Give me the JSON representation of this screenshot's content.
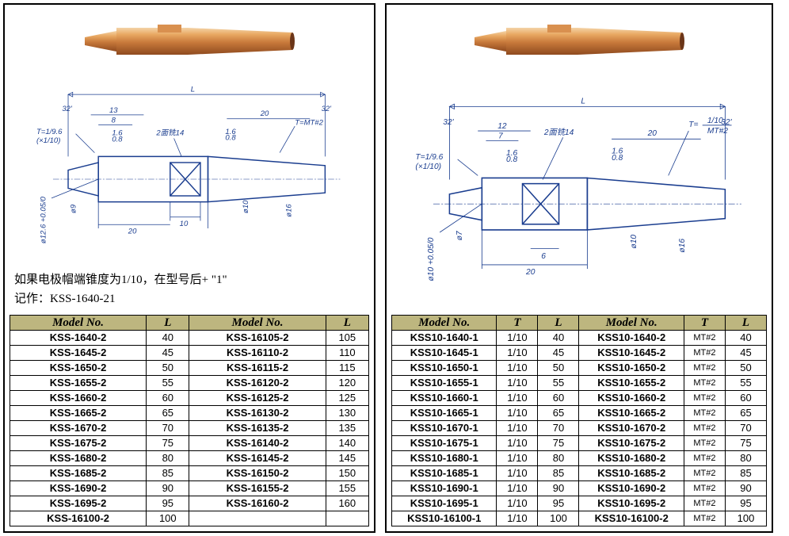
{
  "note": {
    "line1": "如果电极帽端锥度为1/10，在型号后+ \"1\"",
    "line2": "记作：KSS-1640-21"
  },
  "diagram_left": {
    "L": "L",
    "T_left": "T=1/9.6",
    "T_left2": "(×1/10)",
    "T_right": "T=MT#2",
    "d13": "13",
    "d8": "8",
    "d20a": "20",
    "d20b": "20",
    "d10": "10",
    "d16a": "1.6",
    "d08a": "0.8",
    "d16b": "1.6",
    "d08b": "0.8",
    "face": "2面铣14",
    "phi9": "ø9",
    "phi10": "ø10",
    "phi16": "ø16",
    "phi126": "ø12.6 +0.05/0",
    "ang1": "32'",
    "ang2": "32'"
  },
  "diagram_right": {
    "L": "L",
    "T_left": "T=1/9.6",
    "T_left2": "(×1/10)",
    "T_right_top": "1/10",
    "T_right_bot": "MT#2",
    "T_eq": "T=",
    "d12": "12",
    "d7": "7",
    "d20a": "20",
    "d20b": "20",
    "d6": "6",
    "d16a": "1.6",
    "d08a": "0.8",
    "d16b": "1.6",
    "d08b": "0.8",
    "face": "2面铣14",
    "phi7": "ø7",
    "phi10": "ø10",
    "phi16": "ø16",
    "phi10tol": "ø10 +0.05/0",
    "ang1": "32'",
    "ang2": "32'"
  },
  "table_left": {
    "headers": [
      "Model No.",
      "L",
      "Model No.",
      "L"
    ],
    "rows": [
      [
        "KSS-1640-2",
        "40",
        "KSS-16105-2",
        "105"
      ],
      [
        "KSS-1645-2",
        "45",
        "KSS-16110-2",
        "110"
      ],
      [
        "KSS-1650-2",
        "50",
        "KSS-16115-2",
        "115"
      ],
      [
        "KSS-1655-2",
        "55",
        "KSS-16120-2",
        "120"
      ],
      [
        "KSS-1660-2",
        "60",
        "KSS-16125-2",
        "125"
      ],
      [
        "KSS-1665-2",
        "65",
        "KSS-16130-2",
        "130"
      ],
      [
        "KSS-1670-2",
        "70",
        "KSS-16135-2",
        "135"
      ],
      [
        "KSS-1675-2",
        "75",
        "KSS-16140-2",
        "140"
      ],
      [
        "KSS-1680-2",
        "80",
        "KSS-16145-2",
        "145"
      ],
      [
        "KSS-1685-2",
        "85",
        "KSS-16150-2",
        "150"
      ],
      [
        "KSS-1690-2",
        "90",
        "KSS-16155-2",
        "155"
      ],
      [
        "KSS-1695-2",
        "95",
        "KSS-16160-2",
        "160"
      ],
      [
        "KSS-16100-2",
        "100",
        "",
        ""
      ]
    ]
  },
  "table_right": {
    "headers": [
      "Model No.",
      "T",
      "L",
      "Model No.",
      "T",
      "L"
    ],
    "rows": [
      [
        "KSS10-1640-1",
        "1/10",
        "40",
        "KSS10-1640-2",
        "MT#2",
        "40"
      ],
      [
        "KSS10-1645-1",
        "1/10",
        "45",
        "KSS10-1645-2",
        "MT#2",
        "45"
      ],
      [
        "KSS10-1650-1",
        "1/10",
        "50",
        "KSS10-1650-2",
        "MT#2",
        "50"
      ],
      [
        "KSS10-1655-1",
        "1/10",
        "55",
        "KSS10-1655-2",
        "MT#2",
        "55"
      ],
      [
        "KSS10-1660-1",
        "1/10",
        "60",
        "KSS10-1660-2",
        "MT#2",
        "60"
      ],
      [
        "KSS10-1665-1",
        "1/10",
        "65",
        "KSS10-1665-2",
        "MT#2",
        "65"
      ],
      [
        "KSS10-1670-1",
        "1/10",
        "70",
        "KSS10-1670-2",
        "MT#2",
        "70"
      ],
      [
        "KSS10-1675-1",
        "1/10",
        "75",
        "KSS10-1675-2",
        "MT#2",
        "75"
      ],
      [
        "KSS10-1680-1",
        "1/10",
        "80",
        "KSS10-1680-2",
        "MT#2",
        "80"
      ],
      [
        "KSS10-1685-1",
        "1/10",
        "85",
        "KSS10-1685-2",
        "MT#2",
        "85"
      ],
      [
        "KSS10-1690-1",
        "1/10",
        "90",
        "KSS10-1690-2",
        "MT#2",
        "90"
      ],
      [
        "KSS10-1695-1",
        "1/10",
        "95",
        "KSS10-1695-2",
        "MT#2",
        "95"
      ],
      [
        "KSS10-16100-1",
        "1/10",
        "100",
        "KSS10-16100-2",
        "MT#2",
        "100"
      ]
    ]
  },
  "colors": {
    "header_bg": "#bdb67f",
    "copper1": "#d9904f",
    "copper2": "#b8662e",
    "copper3": "#f0c090",
    "diagram": "#1a3d8f"
  }
}
